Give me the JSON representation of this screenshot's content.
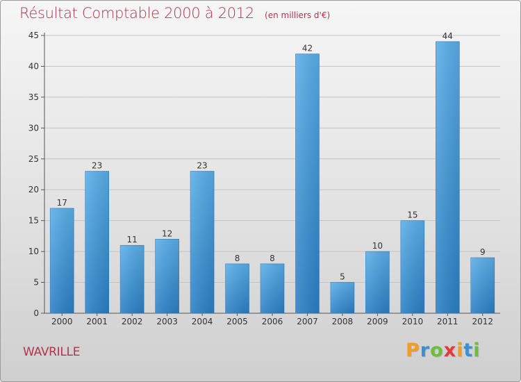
{
  "title": "Résultat Comptable 2000 à 2012",
  "subtitle": "(en milliers d'€)",
  "commune": "WAVRILLE",
  "logo": {
    "text": "Proxiti",
    "letters": [
      "P",
      "r",
      "o",
      "x",
      "i",
      "t",
      "i"
    ],
    "colors": [
      "#f39c1f",
      "#3a8fd6",
      "#6cbf3a",
      "#e23a3a",
      "#f39c1f",
      "#3a8fd6",
      "#6cbf3a"
    ]
  },
  "colors": {
    "bar_top": "#5aaee8",
    "bar_bottom": "#2a7fc4",
    "title": "#b0364c"
  },
  "chart_data": {
    "type": "bar",
    "categories": [
      "2000",
      "2001",
      "2002",
      "2003",
      "2004",
      "2005",
      "2006",
      "2007",
      "2008",
      "2009",
      "2010",
      "2011",
      "2012"
    ],
    "values": [
      17,
      23,
      11,
      12,
      23,
      8,
      8,
      42,
      5,
      10,
      15,
      44,
      9
    ],
    "ylim": [
      0,
      45
    ],
    "yticks": [
      0,
      5,
      10,
      15,
      20,
      25,
      30,
      35,
      40,
      45
    ],
    "grid": "horizontal",
    "data_labels": true
  }
}
